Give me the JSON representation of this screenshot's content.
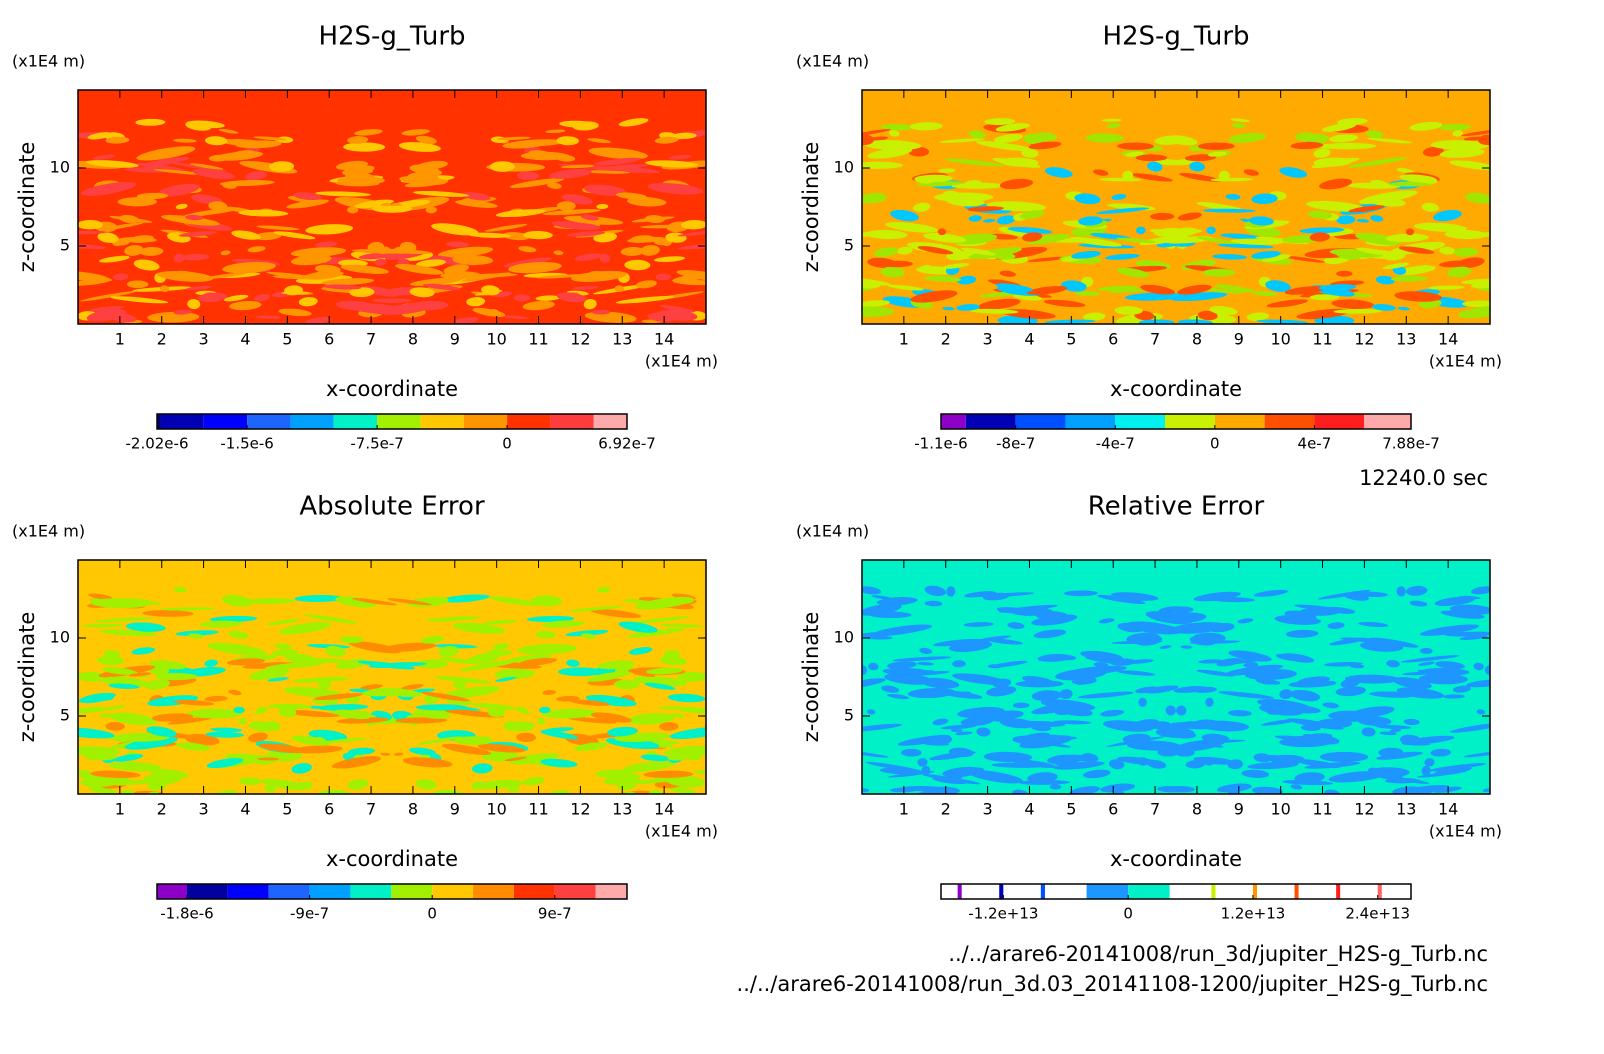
{
  "chart_data": [
    {
      "type": "contour",
      "title": "H2S-g_Turb",
      "x_label": "x-coordinate",
      "y_label": "z-coordinate",
      "x_unit": "(x1E4 m)",
      "y_unit": "(x1E4 m)",
      "xlim": [
        0,
        15
      ],
      "xticks": [
        1,
        2,
        3,
        4,
        5,
        6,
        7,
        8,
        9,
        10,
        11,
        12,
        13,
        14
      ],
      "ylim": [
        0,
        15
      ],
      "yticks": [
        5,
        10
      ],
      "field_color": "#ff3200",
      "pattern_colors": [
        "#ff9600",
        "#ff9600",
        "#ffc800",
        "#ff4040"
      ],
      "colorbar": {
        "lim": [
          -2.02e-06,
          6.92e-07
        ],
        "levels": [
          -2.02e-06,
          -2e-06,
          -1.75e-06,
          -1.5e-06,
          -1.25e-06,
          -1e-06,
          -7.5e-07,
          -5e-07,
          -2.5e-07,
          0,
          2.5e-07,
          5e-07,
          6.92e-07
        ],
        "colors": [
          "#000064",
          "#0000b4",
          "#0000ff",
          "#1e64ff",
          "#00a0ff",
          "#00f0c8",
          "#a0f000",
          "#ffc800",
          "#ff9600",
          "#ff3200",
          "#ff3c3c",
          "#ffaaaa"
        ],
        "ticks": [
          {
            "value": -2.02e-06,
            "label": "-2.02e-6"
          },
          {
            "value": -1.5e-06,
            "label": "-1.5e-6"
          },
          {
            "value": -7.5e-07,
            "label": "-7.5e-7"
          },
          0,
          {
            "value": 6.92e-07,
            "label": "6.92e-7"
          }
        ]
      }
    },
    {
      "type": "contour",
      "title": "H2S-g_Turb",
      "x_label": "x-coordinate",
      "y_label": "z-coordinate",
      "x_unit": "(x1E4 m)",
      "y_unit": "(x1E4 m)",
      "xlim": [
        0,
        15
      ],
      "xticks": [
        1,
        2,
        3,
        4,
        5,
        6,
        7,
        8,
        9,
        10,
        11,
        12,
        13,
        14
      ],
      "ylim": [
        0,
        15
      ],
      "yticks": [
        5,
        10
      ],
      "field_color": "#ffaa00",
      "pattern_colors": [
        "#c8f000",
        "#c8f000",
        "#a0e600",
        "#ff5000",
        "#00c8ff"
      ],
      "colorbar": {
        "lim": [
          -1.1e-06,
          7.88e-07
        ],
        "levels": [
          -1.1e-06,
          -1e-06,
          -8e-07,
          -6e-07,
          -4e-07,
          -2e-07,
          0,
          2e-07,
          4e-07,
          6e-07,
          7.88e-07
        ],
        "colors": [
          "#8c00c8",
          "#0000b4",
          "#0050ff",
          "#00a0ff",
          "#00f0f0",
          "#c8f000",
          "#ffaa00",
          "#ff5000",
          "#ff1e1e",
          "#ffaaaa"
        ],
        "ticks": [
          {
            "value": -1.1e-06,
            "label": "-1.1e-6"
          },
          {
            "value": -8e-07,
            "label": "-8e-7"
          },
          {
            "value": -4e-07,
            "label": "-4e-7"
          },
          0,
          {
            "value": 4e-07,
            "label": "4e-7"
          },
          {
            "value": 7.88e-07,
            "label": "7.88e-7"
          }
        ]
      }
    },
    {
      "type": "contour",
      "title": "Absolute Error",
      "x_label": "x-coordinate",
      "y_label": "z-coordinate",
      "x_unit": "(x1E4 m)",
      "y_unit": "(x1E4 m)",
      "xlim": [
        0,
        15
      ],
      "xticks": [
        1,
        2,
        3,
        4,
        5,
        6,
        7,
        8,
        9,
        10,
        11,
        12,
        13,
        14
      ],
      "ylim": [
        0,
        15
      ],
      "yticks": [
        5,
        10
      ],
      "field_color": "#ffc800",
      "pattern_colors": [
        "#a0f000",
        "#a0f000",
        "#a0f000",
        "#ff8c00",
        "#00f0c8"
      ],
      "colorbar": {
        "lim": [
          -2.02e-06,
          1.43e-06
        ],
        "levels": [
          -2.02e-06,
          -1.8e-06,
          -1.5e-06,
          -1.2e-06,
          -9e-07,
          -6e-07,
          -3e-07,
          0,
          3e-07,
          6e-07,
          9e-07,
          1.2e-06,
          1.43e-06
        ],
        "colors": [
          "#8c00c8",
          "#0000a0",
          "#0000ff",
          "#1e64ff",
          "#00a0ff",
          "#00f0c8",
          "#a0f000",
          "#ffc800",
          "#ff8c00",
          "#ff3200",
          "#ff4040",
          "#ffaaaa"
        ],
        "ticks": [
          {
            "value": -1.8e-06,
            "label": "-1.8e-6"
          },
          {
            "value": -9e-07,
            "label": "-9e-7"
          },
          0,
          {
            "value": 9e-07,
            "label": "9e-7"
          }
        ]
      }
    },
    {
      "type": "contour",
      "title": "Relative Error",
      "x_label": "x-coordinate",
      "y_label": "z-coordinate",
      "x_unit": "(x1E4 m)",
      "y_unit": "(x1E4 m)",
      "xlim": [
        0,
        15
      ],
      "xticks": [
        1,
        2,
        3,
        4,
        5,
        6,
        7,
        8,
        9,
        10,
        11,
        12,
        13,
        14
      ],
      "ylim": [
        0,
        15
      ],
      "yticks": [
        5,
        10
      ],
      "field_color": "#00f0c8",
      "pattern_colors": [
        "#1e96ff",
        "#1e96ff"
      ],
      "colorbar": {
        "lim": [
          -18000000000000.0,
          27200000000000.0
        ],
        "levels": [
          -18000000000000.0,
          -16400000000000.0,
          -16000000000000.0,
          -12400000000000.0,
          -12000000000000.0,
          -8400000000000.0,
          -8000000000000.0,
          -4000000000000.0,
          0,
          4000000000000.0,
          8000000000000.0,
          8400000000000.0,
          12000000000000.0,
          12400000000000.0,
          16000000000000.0,
          16400000000000.0,
          20000000000000.0,
          20400000000000.0,
          24000000000000.0,
          24400000000000.0,
          27200000000000.0
        ],
        "colors": [
          "#ffffff",
          "#8c00c8",
          "#ffffff",
          "#0000b4",
          "#ffffff",
          "#0050ff",
          "#ffffff",
          "#1e96ff",
          "#00f0c8",
          "#ffffff",
          "#c8f000",
          "#ffffff",
          "#ff9600",
          "#ffffff",
          "#ff5000",
          "#ffffff",
          "#ff1e1e",
          "#ffffff",
          "#ff6464",
          "#ffffff"
        ],
        "ticks": [
          {
            "value": -12000000000000.0,
            "label": "-1.2e+13"
          },
          0,
          {
            "value": 12000000000000.0,
            "label": "1.2e+13"
          },
          {
            "value": 24000000000000.0,
            "label": "2.4e+13"
          }
        ]
      }
    }
  ],
  "time": "12240.0 sec",
  "files": [
    "../../arare6-20141008/run_3d/jupiter_H2S-g_Turb.nc",
    "../../arare6-20141008/run_3d.03_20141108-1200/jupiter_H2S-g_Turb.nc"
  ]
}
